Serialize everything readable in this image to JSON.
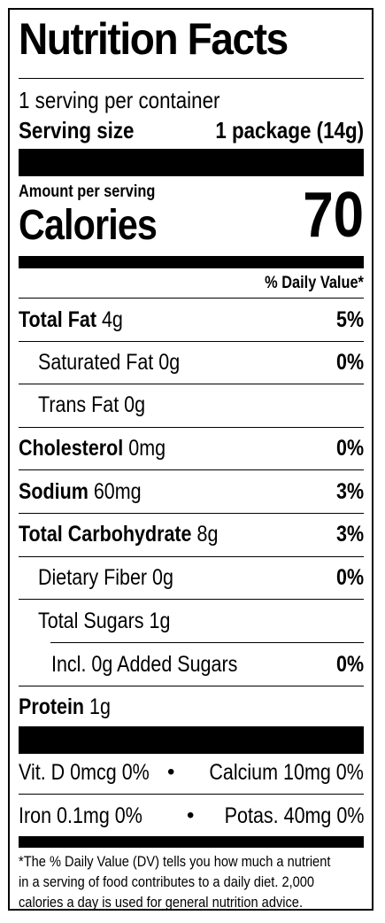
{
  "title": "Nutrition Facts",
  "servings_per_container": "1 serving per container",
  "serving_size": {
    "label": "Serving size",
    "value": "1 package (14g)"
  },
  "amount_per_serving": "Amount per serving",
  "calories": {
    "label": "Calories",
    "value": "70"
  },
  "daily_value_header": "% Daily Value*",
  "nutrients": [
    {
      "name": "Total Fat",
      "amount": "4g",
      "dv": "5%"
    },
    {
      "name": "Saturated Fat",
      "amount": "0g",
      "dv": "0%"
    },
    {
      "name": "Trans Fat",
      "amount": "0g",
      "dv": ""
    },
    {
      "name": "Cholesterol",
      "amount": "0mg",
      "dv": "0%"
    },
    {
      "name": "Sodium",
      "amount": "60mg",
      "dv": "3%"
    },
    {
      "name": "Total Carbohydrate",
      "amount": "8g",
      "dv": "3%"
    },
    {
      "name": "Dietary Fiber",
      "amount": "0g",
      "dv": "0%"
    },
    {
      "name": "Total Sugars",
      "amount": "1g",
      "dv": ""
    },
    {
      "name": "Incl. 0g Added Sugars",
      "amount": "",
      "dv": "0%"
    },
    {
      "name": "Protein",
      "amount": "1g",
      "dv": ""
    }
  ],
  "vitamins_row1": {
    "left": "Vit. D 0mcg 0%",
    "separator": "•",
    "right": "Calcium 10mg 0%"
  },
  "vitamins_row2": {
    "left": "Iron 0.1mg 0%",
    "separator": "•",
    "right": "Potas. 40mg 0%"
  },
  "footnote": [
    "*The % Daily Value (DV) tells you how much a nutrient",
    "in a serving of food contributes to a daily diet. 2,000",
    "calories a day is used for general nutrition advice."
  ]
}
